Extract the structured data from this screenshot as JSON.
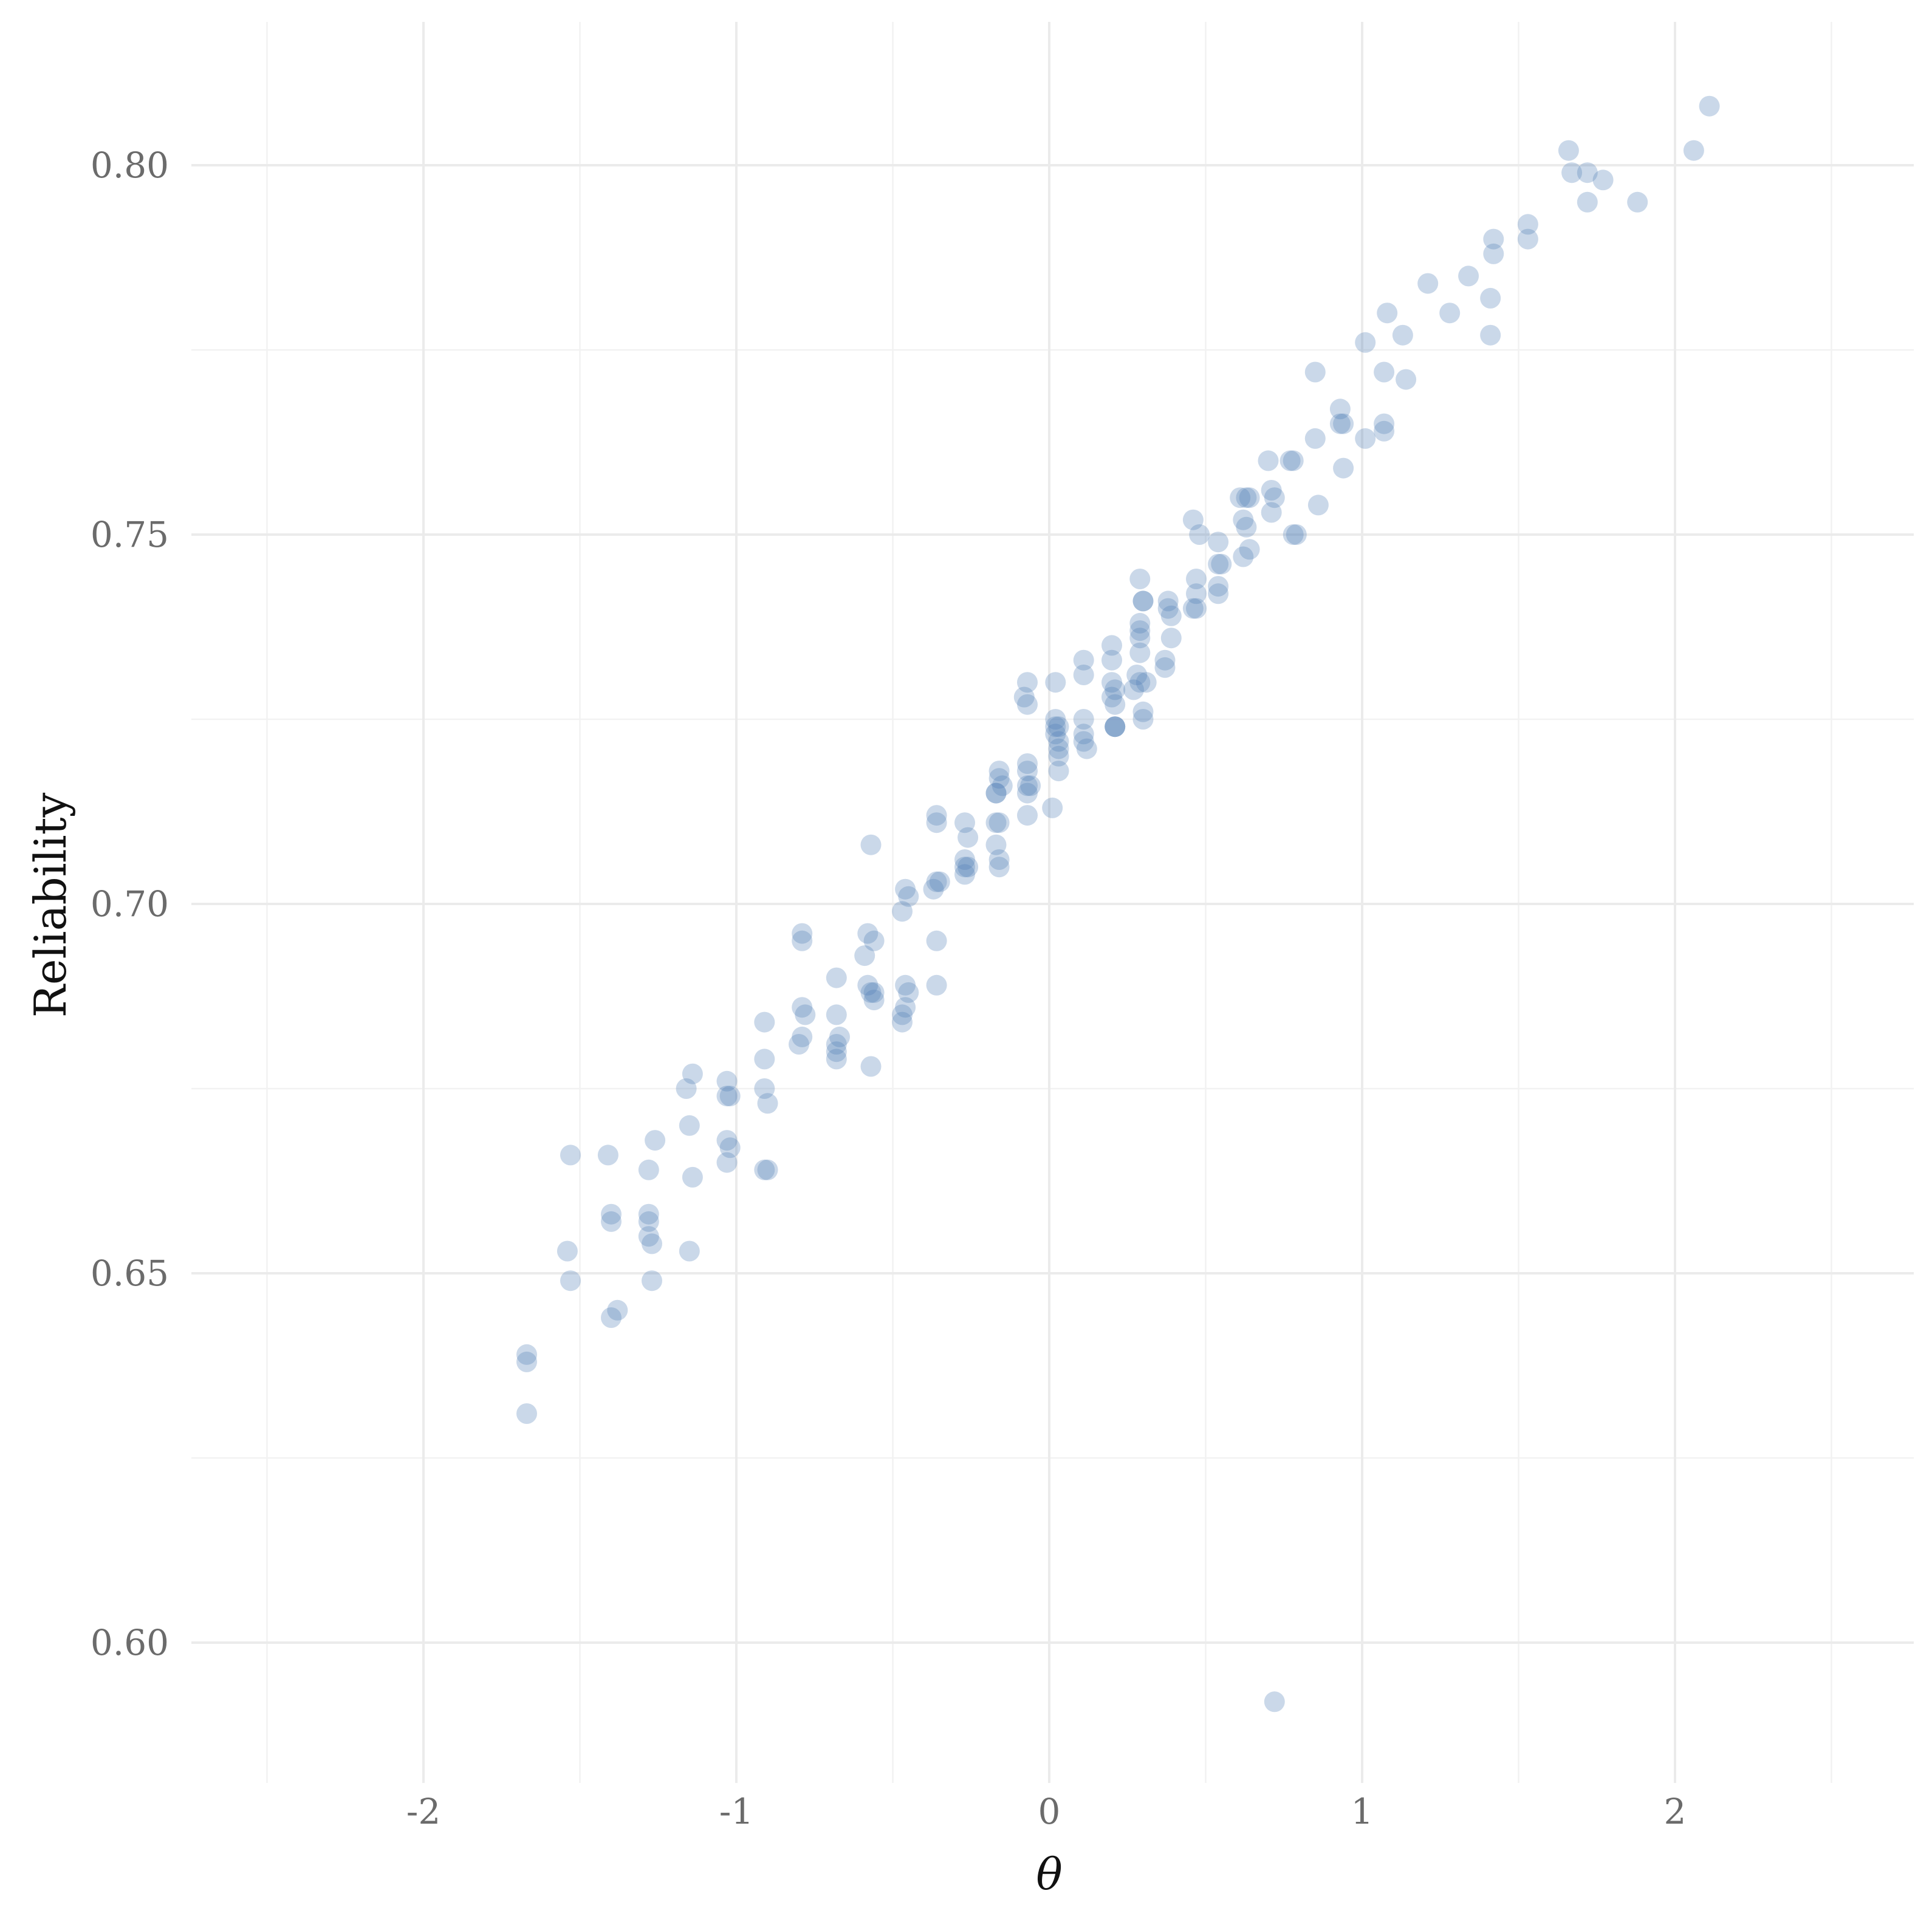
{
  "chart_data": {
    "type": "scatter",
    "title": "",
    "xlabel": "θ",
    "ylabel": "Reliability",
    "xlim": [
      -2.75,
      2.75
    ],
    "ylim": [
      0.583,
      0.819
    ],
    "x_ticks": [
      -2,
      -1,
      0,
      1,
      2
    ],
    "x_tick_labels": [
      "-2",
      "-1",
      "0",
      "1",
      "2"
    ],
    "y_ticks": [
      0.6,
      0.65,
      0.7,
      0.75,
      0.8
    ],
    "y_tick_labels": [
      "0.60",
      "0.65",
      "0.70",
      "0.75",
      "0.80"
    ],
    "grid": true,
    "point_color": "#4f7fb5",
    "point_opacity": 0.3,
    "points": [
      [
        -1.67,
        0.639
      ],
      [
        -1.67,
        0.638
      ],
      [
        -1.67,
        0.631
      ],
      [
        -1.54,
        0.653
      ],
      [
        -1.53,
        0.649
      ],
      [
        -1.53,
        0.666
      ],
      [
        -1.41,
        0.666
      ],
      [
        -1.4,
        0.658
      ],
      [
        -1.4,
        0.657
      ],
      [
        -1.4,
        0.644
      ],
      [
        -1.38,
        0.645
      ],
      [
        -1.28,
        0.664
      ],
      [
        -1.28,
        0.658
      ],
      [
        -1.28,
        0.657
      ],
      [
        -1.28,
        0.655
      ],
      [
        -1.27,
        0.654
      ],
      [
        -1.27,
        0.649
      ],
      [
        -1.26,
        0.668
      ],
      [
        -1.16,
        0.675
      ],
      [
        -1.15,
        0.67
      ],
      [
        -1.15,
        0.653
      ],
      [
        -1.14,
        0.677
      ],
      [
        -1.14,
        0.663
      ],
      [
        -1.03,
        0.676
      ],
      [
        -1.03,
        0.674
      ],
      [
        -1.03,
        0.668
      ],
      [
        -1.02,
        0.674
      ],
      [
        -1.02,
        0.667
      ],
      [
        -1.03,
        0.665
      ],
      [
        -0.91,
        0.684
      ],
      [
        -0.91,
        0.679
      ],
      [
        -0.91,
        0.675
      ],
      [
        -0.9,
        0.673
      ],
      [
        -0.91,
        0.664
      ],
      [
        -0.9,
        0.664
      ],
      [
        -0.8,
        0.681
      ],
      [
        -0.79,
        0.686
      ],
      [
        -0.79,
        0.682
      ],
      [
        -0.79,
        0.696
      ],
      [
        -0.79,
        0.695
      ],
      [
        -0.78,
        0.685
      ],
      [
        -0.68,
        0.69
      ],
      [
        -0.68,
        0.685
      ],
      [
        -0.68,
        0.681
      ],
      [
        -0.68,
        0.68
      ],
      [
        -0.68,
        0.679
      ],
      [
        -0.67,
        0.682
      ],
      [
        -0.59,
        0.693
      ],
      [
        -0.58,
        0.696
      ],
      [
        -0.58,
        0.689
      ],
      [
        -0.57,
        0.708
      ],
      [
        -0.57,
        0.688
      ],
      [
        -0.57,
        0.678
      ],
      [
        -0.56,
        0.695
      ],
      [
        -0.56,
        0.687
      ],
      [
        -0.56,
        0.688
      ],
      [
        -0.47,
        0.699
      ],
      [
        -0.47,
        0.685
      ],
      [
        -0.47,
        0.684
      ],
      [
        -0.46,
        0.702
      ],
      [
        -0.46,
        0.689
      ],
      [
        -0.46,
        0.686
      ],
      [
        -0.45,
        0.701
      ],
      [
        -0.45,
        0.688
      ],
      [
        -0.37,
        0.702
      ],
      [
        -0.36,
        0.712
      ],
      [
        -0.36,
        0.711
      ],
      [
        -0.36,
        0.703
      ],
      [
        -0.36,
        0.695
      ],
      [
        -0.36,
        0.689
      ],
      [
        -0.35,
        0.703
      ],
      [
        -0.27,
        0.711
      ],
      [
        -0.27,
        0.706
      ],
      [
        -0.27,
        0.705
      ],
      [
        -0.27,
        0.704
      ],
      [
        -0.26,
        0.709
      ],
      [
        -0.26,
        0.705
      ],
      [
        -0.17,
        0.715
      ],
      [
        -0.17,
        0.715
      ],
      [
        -0.17,
        0.711
      ],
      [
        -0.17,
        0.708
      ],
      [
        -0.16,
        0.718
      ],
      [
        -0.16,
        0.717
      ],
      [
        -0.16,
        0.711
      ],
      [
        -0.16,
        0.706
      ],
      [
        -0.16,
        0.705
      ],
      [
        -0.15,
        0.716
      ],
      [
        -0.08,
        0.728
      ],
      [
        -0.07,
        0.73
      ],
      [
        -0.07,
        0.727
      ],
      [
        -0.07,
        0.719
      ],
      [
        -0.07,
        0.718
      ],
      [
        -0.07,
        0.716
      ],
      [
        -0.07,
        0.715
      ],
      [
        -0.07,
        0.712
      ],
      [
        -0.06,
        0.716
      ],
      [
        0.01,
        0.713
      ],
      [
        0.02,
        0.73
      ],
      [
        0.02,
        0.725
      ],
      [
        0.02,
        0.724
      ],
      [
        0.02,
        0.723
      ],
      [
        0.03,
        0.724
      ],
      [
        0.03,
        0.722
      ],
      [
        0.03,
        0.721
      ],
      [
        0.03,
        0.72
      ],
      [
        0.03,
        0.718
      ],
      [
        0.11,
        0.733
      ],
      [
        0.11,
        0.731
      ],
      [
        0.11,
        0.725
      ],
      [
        0.11,
        0.723
      ],
      [
        0.11,
        0.722
      ],
      [
        0.12,
        0.721
      ],
      [
        0.2,
        0.735
      ],
      [
        0.2,
        0.733
      ],
      [
        0.2,
        0.73
      ],
      [
        0.2,
        0.728
      ],
      [
        0.21,
        0.729
      ],
      [
        0.21,
        0.727
      ],
      [
        0.21,
        0.724
      ],
      [
        0.21,
        0.724
      ],
      [
        0.21,
        0.724
      ],
      [
        0.27,
        0.729
      ],
      [
        0.28,
        0.731
      ],
      [
        0.29,
        0.744
      ],
      [
        0.29,
        0.738
      ],
      [
        0.29,
        0.737
      ],
      [
        0.29,
        0.736
      ],
      [
        0.29,
        0.734
      ],
      [
        0.29,
        0.73
      ],
      [
        0.3,
        0.741
      ],
      [
        0.3,
        0.741
      ],
      [
        0.3,
        0.726
      ],
      [
        0.3,
        0.725
      ],
      [
        0.31,
        0.73
      ],
      [
        0.37,
        0.733
      ],
      [
        0.37,
        0.732
      ],
      [
        0.38,
        0.741
      ],
      [
        0.38,
        0.74
      ],
      [
        0.39,
        0.739
      ],
      [
        0.39,
        0.736
      ],
      [
        0.46,
        0.752
      ],
      [
        0.46,
        0.74
      ],
      [
        0.47,
        0.744
      ],
      [
        0.47,
        0.742
      ],
      [
        0.47,
        0.74
      ],
      [
        0.48,
        0.75
      ],
      [
        0.54,
        0.749
      ],
      [
        0.54,
        0.746
      ],
      [
        0.54,
        0.743
      ],
      [
        0.54,
        0.742
      ],
      [
        0.55,
        0.746
      ],
      [
        0.61,
        0.755
      ],
      [
        0.62,
        0.752
      ],
      [
        0.62,
        0.747
      ],
      [
        0.63,
        0.755
      ],
      [
        0.63,
        0.751
      ],
      [
        0.64,
        0.755
      ],
      [
        0.64,
        0.748
      ],
      [
        0.7,
        0.76
      ],
      [
        0.71,
        0.756
      ],
      [
        0.71,
        0.753
      ],
      [
        0.72,
        0.755
      ],
      [
        0.72,
        0.592
      ],
      [
        0.77,
        0.76
      ],
      [
        0.78,
        0.76
      ],
      [
        0.78,
        0.75
      ],
      [
        0.79,
        0.75
      ],
      [
        0.85,
        0.763
      ],
      [
        0.85,
        0.772
      ],
      [
        0.86,
        0.754
      ],
      [
        0.93,
        0.767
      ],
      [
        0.93,
        0.765
      ],
      [
        0.94,
        0.765
      ],
      [
        0.94,
        0.759
      ],
      [
        1.01,
        0.776
      ],
      [
        1.01,
        0.763
      ],
      [
        1.07,
        0.772
      ],
      [
        1.07,
        0.765
      ],
      [
        1.07,
        0.764
      ],
      [
        1.08,
        0.78
      ],
      [
        1.13,
        0.777
      ],
      [
        1.14,
        0.771
      ],
      [
        1.21,
        0.784
      ],
      [
        1.28,
        0.78
      ],
      [
        1.34,
        0.785
      ],
      [
        1.41,
        0.782
      ],
      [
        1.41,
        0.777
      ],
      [
        1.42,
        0.79
      ],
      [
        1.42,
        0.788
      ],
      [
        1.53,
        0.792
      ],
      [
        1.53,
        0.79
      ],
      [
        1.66,
        0.802
      ],
      [
        1.67,
        0.799
      ],
      [
        1.72,
        0.799
      ],
      [
        1.72,
        0.795
      ],
      [
        1.77,
        0.798
      ],
      [
        1.88,
        0.795
      ],
      [
        2.06,
        0.802
      ],
      [
        2.11,
        0.808
      ]
    ]
  }
}
